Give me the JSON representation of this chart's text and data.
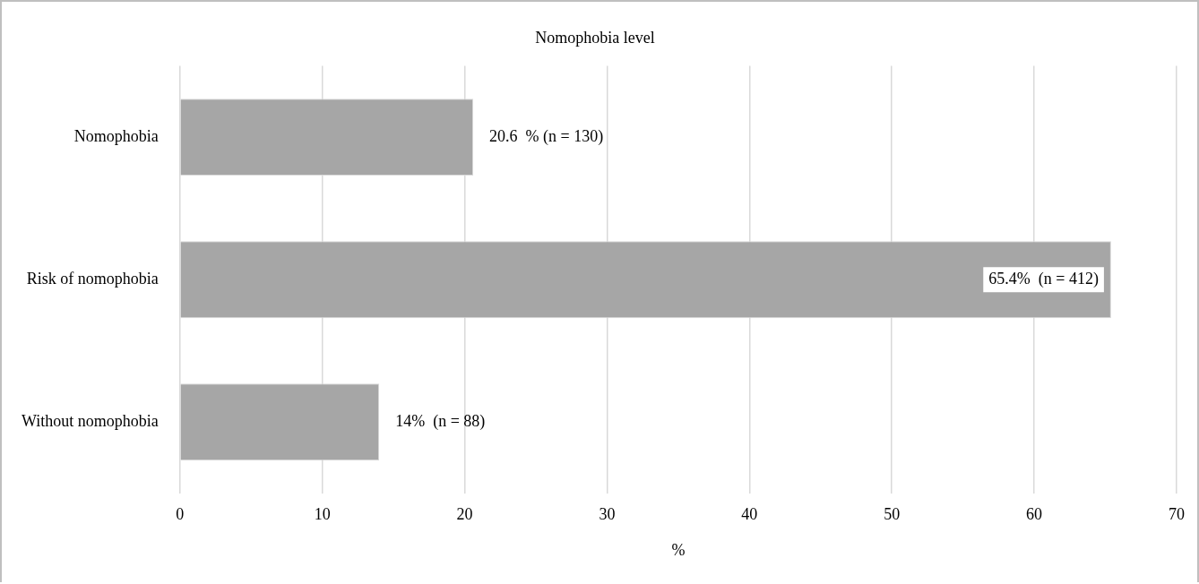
{
  "chart_data": {
    "type": "bar",
    "orientation": "horizontal",
    "title": "Nomophobia level",
    "xlabel": "%",
    "categories": [
      "Nomophobia",
      "Risk of nomophobia",
      "Without nomophobia"
    ],
    "values": [
      20.6,
      65.4,
      14
    ],
    "color": "#a6a6a6",
    "value_labels": [
      "20.6  % (n = 130)",
      "65.4%  (n = 412)",
      "14%  (n = 88)"
    ],
    "xlim": [
      0,
      70
    ],
    "xticks": [
      0,
      10,
      20,
      30,
      40,
      50,
      60,
      70
    ],
    "grid": "x",
    "legend": false
  }
}
